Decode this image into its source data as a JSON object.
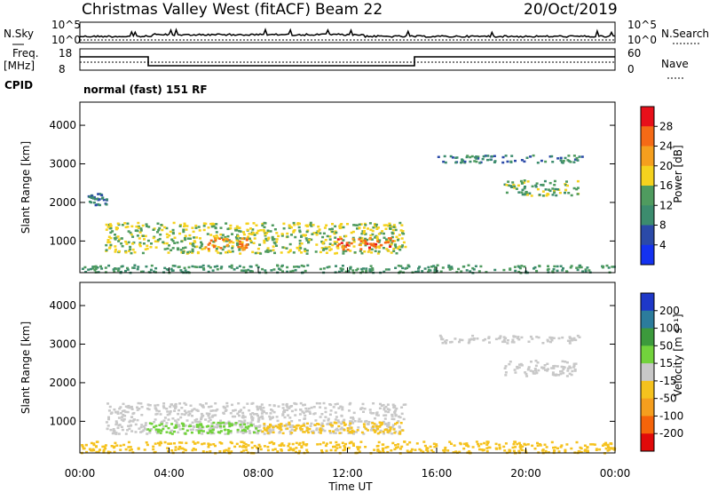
{
  "header": {
    "site": "Christmas Valley West (fitACF)",
    "beam": "Beam 22",
    "date": "20/Oct/2019"
  },
  "noise_panel": {
    "left_label": "N.Sky",
    "right_label": "N.Search",
    "left_ticks": [
      "10^5",
      "10^0"
    ],
    "right_ticks": [
      "10^5",
      "10^0"
    ]
  },
  "freq_panel": {
    "left_label_1": "Freq.",
    "left_label_2": "[MHz]",
    "right_label": "Nave",
    "left_ticks": [
      "18",
      "8"
    ],
    "right_ticks": [
      "60",
      "0"
    ],
    "cpid_label": "CPID",
    "cpid_value": "normal (fast) 151 RF"
  },
  "x_axis": {
    "label": "Time UT",
    "ticks": [
      "00:00",
      "04:00",
      "08:00",
      "12:00",
      "16:00",
      "20:00",
      "00:00"
    ]
  },
  "power_colorbar": {
    "label": "Power [dB]",
    "ticks": [
      "28",
      "24",
      "20",
      "16",
      "12",
      "8",
      "4"
    ],
    "colors": [
      "#e8101a",
      "#f56a16",
      "#f59f1e",
      "#f5d21e",
      "#4f9b5f",
      "#3c8c6e",
      "#2b4aa8",
      "#1432f0"
    ]
  },
  "velocity_colorbar": {
    "label": "Velocity [m s⁻¹]",
    "ticks": [
      "200",
      "100",
      "50",
      "15",
      "-15",
      "-50",
      "-100",
      "-200"
    ],
    "colors": [
      "#1e38c8",
      "#2c7c9c",
      "#3c9a3c",
      "#72d23c",
      "#c8c8c8",
      "#f5c21e",
      "#f59e1e",
      "#f5640a",
      "#e00a0a"
    ]
  },
  "chart_data": [
    {
      "type": "heatmap",
      "title": "Power",
      "xlabel": "Time UT",
      "ylabel": "Slant Range [km]",
      "xlim": [
        "00:00",
        "24:00"
      ],
      "ylim": [
        180,
        4600
      ],
      "yticks": [
        "4000",
        "3000",
        "2000",
        "1000"
      ],
      "zlim": [
        0,
        32
      ],
      "regions": [
        {
          "t": [
            1.1,
            14.6
          ],
          "range": [
            700,
            1500
          ],
          "level": 16
        },
        {
          "t": [
            5.5,
            7.5
          ],
          "range": [
            800,
            1100
          ],
          "level": 24
        },
        {
          "t": [
            11.5,
            14.0
          ],
          "range": [
            800,
            1100
          ],
          "level": 26
        },
        {
          "t": [
            0.3,
            1.2
          ],
          "range": [
            1950,
            2250
          ],
          "level": 8
        },
        {
          "t": [
            16.0,
            22.5
          ],
          "range": [
            3050,
            3250
          ],
          "level": 10
        },
        {
          "t": [
            19.0,
            22.3
          ],
          "range": [
            2200,
            2600
          ],
          "level": 14
        },
        {
          "t": [
            0,
            24
          ],
          "range": [
            200,
            400
          ],
          "level": 12
        }
      ]
    },
    {
      "type": "heatmap",
      "title": "Velocity",
      "xlabel": "Time UT",
      "ylabel": "Slant Range [km]",
      "xlim": [
        "00:00",
        "24:00"
      ],
      "ylim": [
        180,
        4600
      ],
      "yticks": [
        "4000",
        "3000",
        "2000",
        "1000"
      ],
      "zlim": [
        -200,
        200
      ],
      "regions": [
        {
          "t": [
            1.1,
            14.6
          ],
          "range": [
            700,
            1500
          ],
          "level": 0
        },
        {
          "t": [
            3.0,
            8.0
          ],
          "range": [
            700,
            1000
          ],
          "level": 30
        },
        {
          "t": [
            8.0,
            14.5
          ],
          "range": [
            700,
            1000
          ],
          "level": -40
        },
        {
          "t": [
            16.0,
            22.5
          ],
          "range": [
            3050,
            3250
          ],
          "level": 0
        },
        {
          "t": [
            19.0,
            22.3
          ],
          "range": [
            2200,
            2600
          ],
          "level": 0
        },
        {
          "t": [
            0,
            24
          ],
          "range": [
            200,
            500
          ],
          "level": -30
        }
      ]
    }
  ]
}
